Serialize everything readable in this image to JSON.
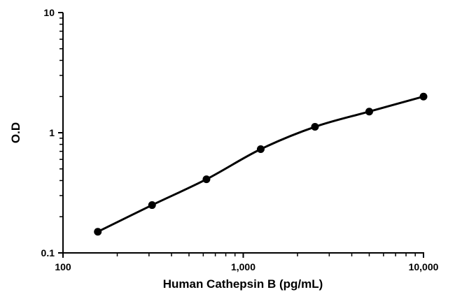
{
  "chart_data": {
    "type": "line",
    "title": "",
    "xlabel": "Human Cathepsin B (pg/mL)",
    "ylabel": "O.D",
    "xscale": "log",
    "yscale": "log",
    "xlim": [
      100,
      10000
    ],
    "ylim": [
      0.1,
      10
    ],
    "x_ticks": [
      100,
      1000,
      10000
    ],
    "x_tick_labels": [
      "100",
      "1,000",
      "10,000"
    ],
    "y_ticks": [
      0.1,
      1,
      10
    ],
    "y_tick_labels": [
      "0.1",
      "1",
      "10"
    ],
    "minor_ticks": "dashed log minor ticks on both axes",
    "grid": false,
    "legend": "none",
    "series": [
      {
        "x": [
          156,
          312,
          625,
          1250,
          2500,
          5000,
          10000
        ],
        "y": [
          0.15,
          0.25,
          0.41,
          0.73,
          1.12,
          1.5,
          2.0
        ],
        "marker": "circle",
        "color": "#000000"
      }
    ]
  }
}
